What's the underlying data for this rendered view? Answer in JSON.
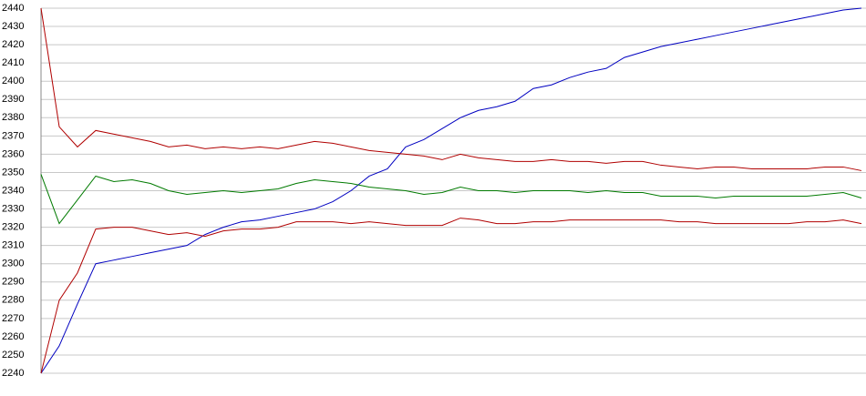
{
  "chart_data": {
    "type": "line",
    "grid": true,
    "ylim": [
      2240,
      2440
    ],
    "yticks": [
      2240,
      2250,
      2260,
      2270,
      2280,
      2290,
      2300,
      2310,
      2320,
      2330,
      2340,
      2350,
      2360,
      2370,
      2380,
      2390,
      2400,
      2410,
      2420,
      2430,
      2440
    ],
    "series": [
      {
        "color": "#0000c0",
        "values": [
          2240,
          2255,
          2278,
          2300,
          2302,
          2304,
          2306,
          2308,
          2310,
          2316,
          2320,
          2323,
          2324,
          2326,
          2328,
          2330,
          2334,
          2340,
          2348,
          2352,
          2364,
          2368,
          2374,
          2380,
          2384,
          2386,
          2389,
          2396,
          2398,
          2402,
          2405,
          2407,
          2413,
          2416,
          2419,
          2421,
          2423,
          2425,
          2427,
          2429,
          2431,
          2433,
          2435,
          2437,
          2439,
          2440
        ]
      },
      {
        "color": "#b00000",
        "values": [
          2440,
          2375,
          2364,
          2373,
          2371,
          2369,
          2367,
          2364,
          2365,
          2363,
          2364,
          2363,
          2364,
          2363,
          2365,
          2367,
          2366,
          2364,
          2362,
          2361,
          2360,
          2359,
          2357,
          2360,
          2358,
          2357,
          2356,
          2356,
          2357,
          2356,
          2356,
          2355,
          2356,
          2356,
          2354,
          2353,
          2352,
          2353,
          2353,
          2352,
          2352,
          2352,
          2352,
          2353,
          2353,
          2351
        ]
      },
      {
        "color": "#007a00",
        "values": [
          2349,
          2322,
          2335,
          2348,
          2345,
          2346,
          2344,
          2340,
          2338,
          2339,
          2340,
          2339,
          2340,
          2341,
          2344,
          2346,
          2345,
          2344,
          2342,
          2341,
          2340,
          2338,
          2339,
          2342,
          2340,
          2340,
          2339,
          2340,
          2340,
          2340,
          2339,
          2340,
          2339,
          2339,
          2337,
          2337,
          2337,
          2336,
          2337,
          2337,
          2337,
          2337,
          2337,
          2338,
          2339,
          2336
        ]
      },
      {
        "color": "#b00000",
        "values": [
          2240,
          2280,
          2295,
          2319,
          2320,
          2320,
          2318,
          2316,
          2317,
          2315,
          2318,
          2319,
          2319,
          2320,
          2323,
          2323,
          2323,
          2322,
          2323,
          2322,
          2321,
          2321,
          2321,
          2325,
          2324,
          2322,
          2322,
          2323,
          2323,
          2324,
          2324,
          2324,
          2324,
          2324,
          2324,
          2323,
          2323,
          2322,
          2322,
          2322,
          2322,
          2322,
          2323,
          2323,
          2324,
          2322
        ]
      }
    ]
  }
}
